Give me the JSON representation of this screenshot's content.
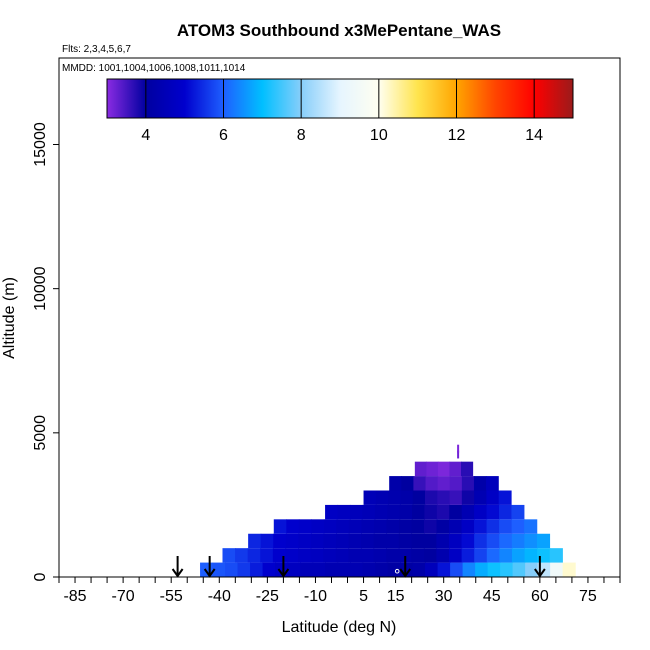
{
  "chart_data": {
    "type": "heatmap",
    "title": "ATOM3 Southbound x3MePentane_WAS",
    "flights_note": "Flts: 2,3,4,5,6,7",
    "dates_note": "MMDD: 1001,1004,1006,1008,1011,1014",
    "xlabel": "Latitude (deg N)",
    "ylabel": "Altitude (m)",
    "xlim": [
      -90,
      85
    ],
    "ylim": [
      0,
      18000
    ],
    "x_ticks": [
      -85,
      -70,
      -55,
      -40,
      -25,
      -10,
      5,
      15,
      30,
      45,
      60,
      75
    ],
    "x_minor_ticks": [
      -90,
      -80,
      -75,
      -65,
      -60,
      -50,
      -45,
      -35,
      -30,
      -20,
      -15,
      -5,
      0,
      10,
      20,
      25,
      35,
      40,
      50,
      55,
      65,
      70,
      80,
      85
    ],
    "y_ticks": [
      0,
      5000,
      10000,
      15000
    ],
    "colorbar": {
      "min": 3,
      "max": 15,
      "ticks": [
        4,
        6,
        8,
        10,
        12,
        14
      ],
      "stops": [
        {
          "value": 3,
          "color": "#8a2be2"
        },
        {
          "value": 4,
          "color": "#0000a0"
        },
        {
          "value": 5,
          "color": "#0000cd"
        },
        {
          "value": 6,
          "color": "#1e5fff"
        },
        {
          "value": 7,
          "color": "#00bfff"
        },
        {
          "value": 8,
          "color": "#87cefa"
        },
        {
          "value": 9,
          "color": "#e6f5ff"
        },
        {
          "value": 10,
          "color": "#fffff0"
        },
        {
          "value": 11,
          "color": "#ffe44d"
        },
        {
          "value": 12,
          "color": "#ffa500"
        },
        {
          "value": 13,
          "color": "#ff4500"
        },
        {
          "value": 14,
          "color": "#ff0000"
        },
        {
          "value": 15,
          "color": "#9b1b1b"
        }
      ]
    },
    "cells": [
      {
        "alt": [
          0,
          500
        ],
        "lat_start": -46,
        "lat_end": 71,
        "values": [
          6.0,
          5.9,
          5.8,
          5.6,
          5.3,
          5.0,
          4.8,
          4.7,
          4.5,
          4.5,
          4.4,
          4.4,
          4.4,
          4.3,
          4.2,
          4.1,
          4.1,
          4.2,
          4.6,
          5.2,
          5.8,
          6.4,
          6.8,
          7.1,
          7.3,
          7.6,
          8.0,
          8.6,
          9.4,
          10.2
        ]
      },
      {
        "alt": [
          500,
          1000
        ],
        "lat_start": -39,
        "lat_end": 67,
        "values": [
          5.8,
          5.6,
          5.4,
          5.2,
          5.0,
          4.9,
          4.8,
          4.7,
          4.6,
          4.5,
          4.4,
          4.4,
          4.3,
          4.2,
          4.2,
          4.1,
          4.0,
          4.3,
          4.8,
          5.3,
          5.7,
          6.1,
          6.4,
          6.7,
          6.9,
          7.1,
          7.3
        ]
      },
      {
        "alt": [
          1000,
          1500
        ],
        "lat_start": -31,
        "lat_end": 63,
        "values": [
          5.4,
          5.2,
          5.0,
          4.9,
          4.8,
          4.7,
          4.6,
          4.5,
          4.4,
          4.3,
          4.2,
          4.2,
          4.1,
          4.0,
          4.0,
          4.3,
          4.7,
          5.1,
          5.5,
          5.8,
          6.1,
          6.3,
          6.5,
          6.7
        ]
      },
      {
        "alt": [
          1500,
          2000
        ],
        "lat_start": -23,
        "lat_end": 59,
        "values": [
          5.2,
          5.0,
          4.9,
          4.8,
          4.7,
          4.6,
          4.5,
          4.4,
          4.3,
          4.2,
          4.1,
          4.0,
          3.9,
          4.1,
          4.4,
          4.8,
          5.2,
          5.5,
          5.8,
          6.0,
          6.2
        ]
      },
      {
        "alt": [
          2000,
          2500
        ],
        "lat_start": -7,
        "lat_end": 55,
        "values": [
          4.8,
          4.7,
          4.6,
          4.5,
          4.4,
          4.3,
          4.2,
          4.0,
          3.9,
          3.8,
          4.0,
          4.4,
          4.8,
          5.1,
          5.4,
          5.7
        ]
      },
      {
        "alt": [
          2500,
          3000
        ],
        "lat_start": 5,
        "lat_end": 51,
        "values": [
          4.5,
          4.4,
          4.3,
          4.2,
          4.0,
          3.8,
          3.7,
          3.6,
          3.9,
          4.4,
          4.8,
          5.2
        ]
      },
      {
        "alt": [
          3000,
          3500
        ],
        "lat_start": 13,
        "lat_end": 47,
        "values": [
          4.2,
          4.0,
          3.6,
          3.4,
          3.3,
          3.4,
          3.7,
          4.2,
          4.6
        ]
      },
      {
        "alt": [
          3500,
          4000
        ],
        "lat_start": 21,
        "lat_end": 39,
        "values": [
          3.3,
          3.2,
          3.1,
          3.3,
          3.7
        ]
      }
    ],
    "markers": [
      {
        "lat": 34.5,
        "alt": 4250,
        "value": 3.2
      },
      {
        "lat": 34.5,
        "alt": 4450,
        "value": 3.1
      }
    ],
    "open_circle": {
      "lat": 15.5,
      "alt": 200
    },
    "arrows_lat": [
      -53,
      -43,
      -20,
      18,
      60
    ]
  }
}
